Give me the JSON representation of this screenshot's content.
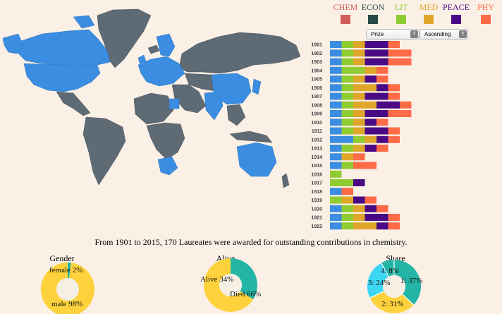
{
  "legend": [
    {
      "code": "CHEM",
      "color": "#cf5d58"
    },
    {
      "code": "ECON",
      "color": "#274a47"
    },
    {
      "code": "LIT",
      "color": "#8fcc32"
    },
    {
      "code": "MED",
      "color": "#dfa72a"
    },
    {
      "code": "PEACE",
      "color": "#4a0a86"
    },
    {
      "code": "PHY",
      "color": "#ff6a47"
    }
  ],
  "controls": {
    "category_select": "Prize Category",
    "order_select": "Ascending"
  },
  "summary": "From 1901 to 2015, 170 Laureates were awarded for outstanding contributions in chemistry.",
  "colors": {
    "map_highlight": "#3a8de0",
    "map_other": "#5e6a74",
    "bar_chem": "#3a8de0",
    "donut_yellow": "#fdd23c",
    "donut_teal": "#23b5a5",
    "donut_cyan": "#3dd7f4",
    "donut_hole": "#f6efe4"
  },
  "chart_data": [
    {
      "type": "bar",
      "title": "",
      "categories": [
        "1901",
        "1902",
        "1903",
        "1904",
        "1905",
        "1906",
        "1907",
        "1908",
        "1909",
        "1910",
        "1911",
        "1912",
        "1913",
        "1914",
        "1915",
        "1916",
        "1917",
        "1918",
        "1919",
        "1920",
        "1921",
        "1922"
      ],
      "series": [
        {
          "name": "CHEM",
          "values": [
            1,
            1,
            1,
            1,
            1,
            1,
            1,
            1,
            1,
            1,
            1,
            2,
            1,
            1,
            1,
            0,
            0,
            1,
            0,
            1,
            1,
            1
          ]
        },
        {
          "name": "ECON",
          "values": [
            0,
            0,
            0,
            0,
            0,
            0,
            0,
            0,
            0,
            0,
            0,
            0,
            0,
            0,
            0,
            0,
            0,
            0,
            0,
            0,
            0,
            0
          ]
        },
        {
          "name": "LIT",
          "values": [
            1,
            1,
            1,
            2,
            1,
            1,
            1,
            1,
            1,
            1,
            1,
            1,
            1,
            0,
            1,
            1,
            2,
            0,
            1,
            1,
            1,
            1
          ]
        },
        {
          "name": "MED",
          "values": [
            1,
            1,
            1,
            1,
            1,
            2,
            1,
            2,
            1,
            1,
            1,
            1,
            1,
            1,
            0,
            0,
            0,
            0,
            1,
            1,
            1,
            2
          ]
        },
        {
          "name": "PEACE",
          "values": [
            2,
            2,
            2,
            0,
            1,
            1,
            2,
            2,
            2,
            1,
            2,
            1,
            1,
            0,
            0,
            0,
            1,
            0,
            1,
            1,
            2,
            1
          ]
        },
        {
          "name": "PHY",
          "values": [
            1,
            2,
            2,
            1,
            1,
            1,
            1,
            1,
            2,
            1,
            1,
            1,
            1,
            1,
            2,
            0,
            0,
            1,
            1,
            1,
            1,
            1
          ]
        }
      ]
    },
    {
      "type": "pie",
      "title": "Gender",
      "slices": [
        {
          "label": "female",
          "value": 2
        },
        {
          "label": "male",
          "value": 98
        }
      ]
    },
    {
      "type": "pie",
      "title": "Alive",
      "slices": [
        {
          "label": "Alive",
          "value": 34
        },
        {
          "label": "Died",
          "value": 66
        }
      ]
    },
    {
      "type": "pie",
      "title": "Share",
      "slices": [
        {
          "label": "1",
          "value": 37
        },
        {
          "label": "2",
          "value": 31
        },
        {
          "label": "3",
          "value": 24
        },
        {
          "label": "4",
          "value": 8
        }
      ]
    }
  ]
}
